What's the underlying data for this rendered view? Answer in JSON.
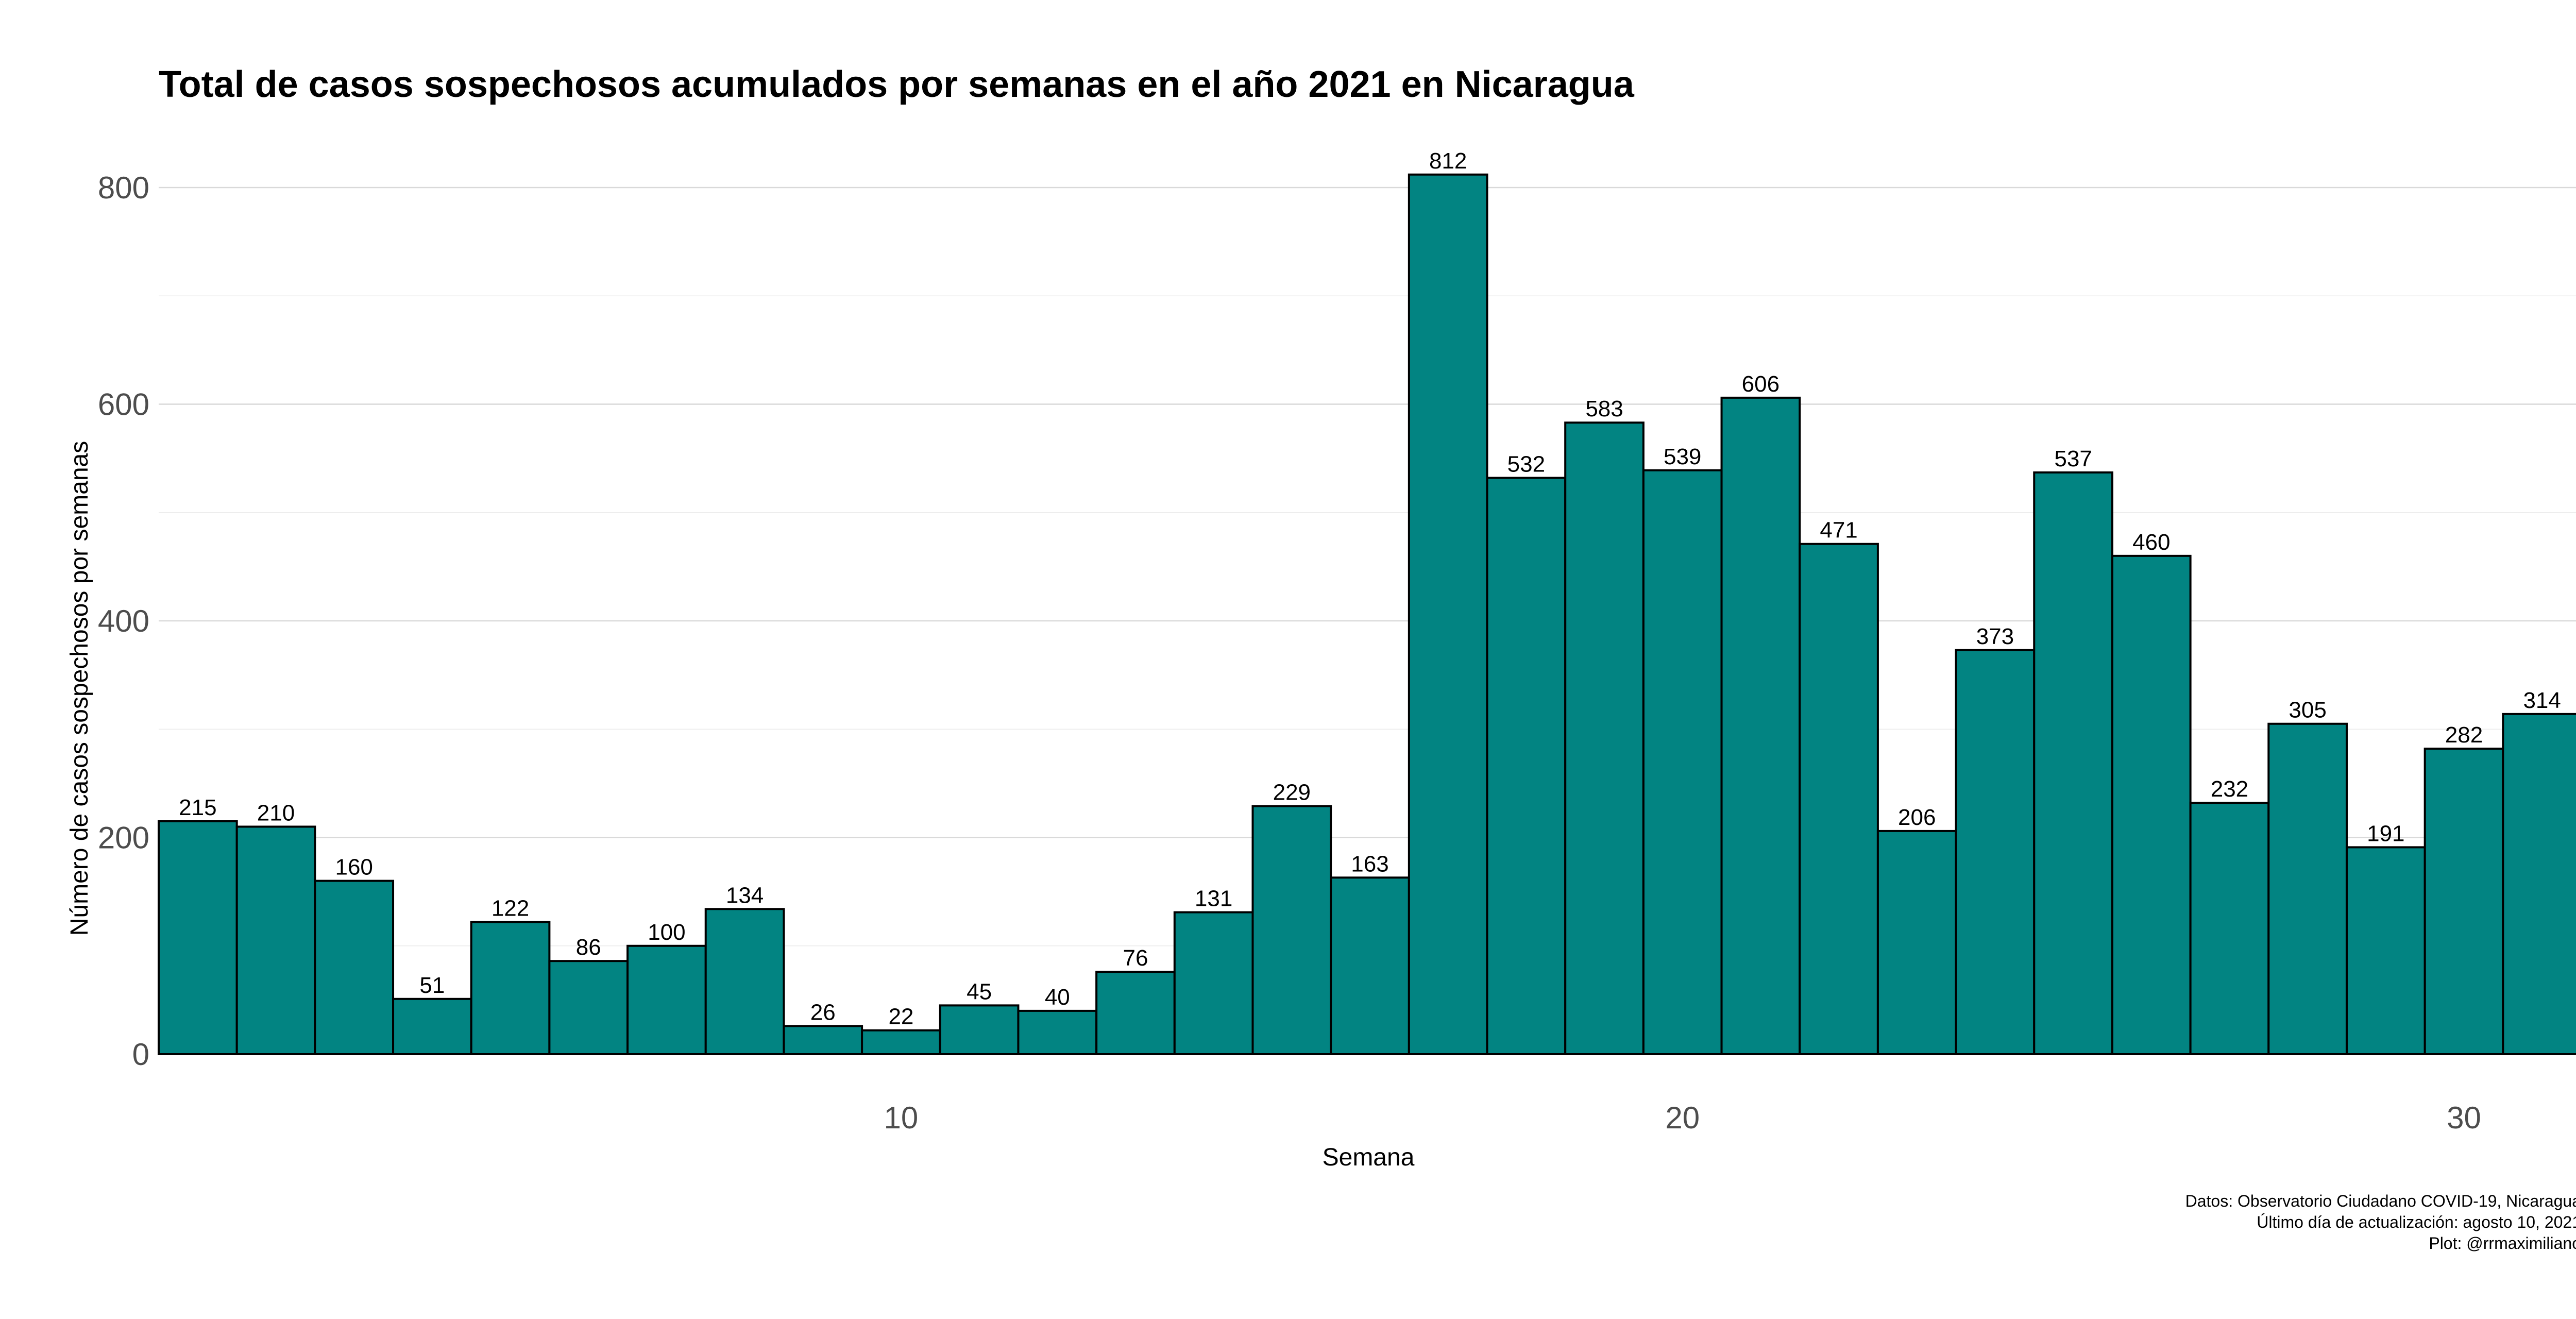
{
  "chart_data": {
    "type": "bar",
    "title": "Total de casos sospechosos acumulados por semanas en el año 2021 en Nicaragua",
    "xlabel": "Semana",
    "ylabel": "Número de casos sospechosos por semanas",
    "x": [
      1,
      2,
      3,
      4,
      5,
      6,
      7,
      8,
      9,
      10,
      11,
      12,
      13,
      14,
      15,
      16,
      17,
      18,
      19,
      20,
      21,
      22,
      23,
      24,
      25,
      26,
      27,
      28,
      29,
      30,
      31
    ],
    "values": [
      215,
      210,
      160,
      51,
      122,
      86,
      100,
      134,
      26,
      22,
      45,
      40,
      76,
      131,
      229,
      163,
      812,
      532,
      583,
      539,
      606,
      471,
      206,
      373,
      537,
      460,
      232,
      305,
      191,
      282,
      314
    ],
    "xlim": [
      0.5,
      31.5
    ],
    "ylim": [
      0,
      800
    ],
    "x_ticks": [
      10,
      20,
      30
    ],
    "y_ticks": [
      0,
      200,
      400,
      600,
      800
    ],
    "grid": true,
    "bar_color": "#028482",
    "bar_outline": "#000000",
    "caption": [
      "Datos: Observatorio Ciudadano COVID-19, Nicaragua",
      "Último día de actualización: agosto 10, 2021",
      "Plot: @rrmaximiliano"
    ]
  }
}
